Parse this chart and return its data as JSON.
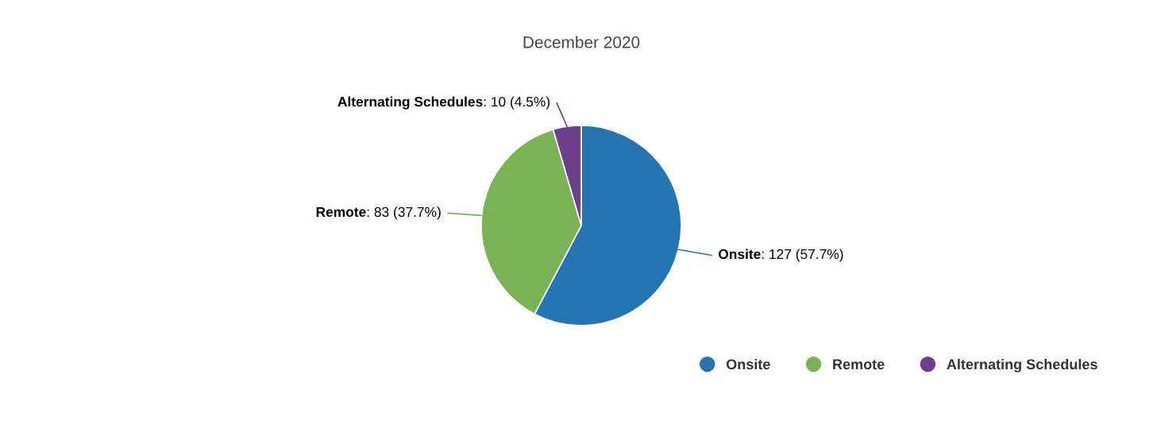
{
  "chart_data": {
    "type": "pie",
    "title": "December 2020",
    "categories": [
      "Onsite",
      "Remote",
      "Alternating Schedules"
    ],
    "values": [
      127,
      83,
      10
    ],
    "colors": [
      "#2475b0",
      "#7ab353",
      "#6f3f8f"
    ],
    "value_labels": [
      ": 127 (57.7%)",
      ": 83 (37.7%)",
      ": 10 (4.5%)"
    ],
    "legend": "bottom right"
  }
}
